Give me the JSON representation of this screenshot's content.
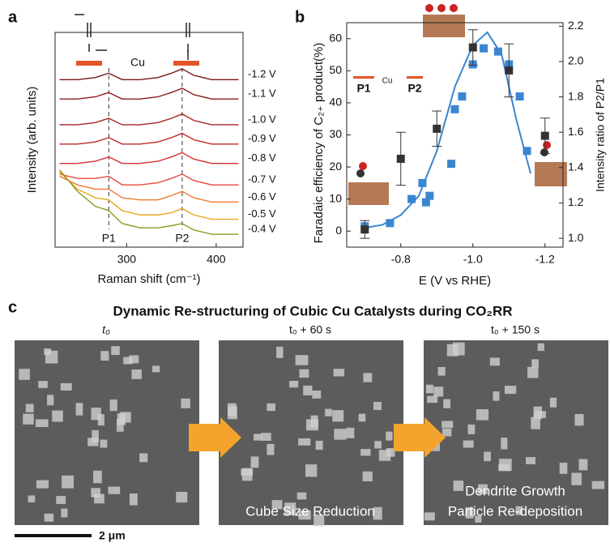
{
  "chart_data": [
    {
      "type": "line",
      "panel": "a",
      "annotation": "Cu",
      "ylabel": "Intensity (arb. units)",
      "xlabel": "Raman shift (cm⁻¹)",
      "x": [
        225,
        245,
        265,
        280,
        295,
        315,
        335,
        350,
        362,
        375,
        395,
        410,
        425
      ],
      "xlim": [
        220,
        430
      ],
      "xticks": [
        300,
        400
      ],
      "ylim": [
        0,
        100
      ],
      "markers": [
        {
          "label": "P1",
          "x": 280
        },
        {
          "label": "P2",
          "x": 362
        }
      ],
      "series": [
        {
          "name": "-1.2 V",
          "color": "#7a1616",
          "values": [
            78,
            78,
            79,
            81,
            78,
            78,
            79,
            81,
            83,
            80,
            78,
            78,
            78
          ]
        },
        {
          "name": "-1.1 V",
          "color": "#8e1c1c",
          "values": [
            69,
            69,
            70,
            72,
            69,
            69,
            70,
            72,
            74,
            71,
            69,
            69,
            69
          ]
        },
        {
          "name": "-1.0 V",
          "color": "#a82222",
          "values": [
            57,
            57,
            58,
            60,
            57,
            57,
            58,
            60,
            62,
            59,
            57,
            57,
            57
          ]
        },
        {
          "name": "-0.9 V",
          "color": "#c02828",
          "values": [
            48,
            48,
            49,
            51,
            48,
            48,
            49,
            51,
            53,
            50,
            48,
            48,
            48
          ]
        },
        {
          "name": "-0.8 V",
          "color": "#d63030",
          "values": [
            39,
            39,
            40,
            42,
            39,
            39,
            40,
            42,
            44,
            41,
            39,
            39,
            39
          ]
        },
        {
          "name": "-0.7 V",
          "color": "#e8483a",
          "values": [
            34,
            32,
            32,
            33,
            29,
            29,
            30,
            32,
            34,
            31,
            29,
            29,
            29
          ]
        },
        {
          "name": "-0.6 V",
          "color": "#f07a30",
          "values": [
            33,
            29,
            27,
            27,
            23,
            22,
            22,
            24,
            26,
            23,
            21,
            21,
            21
          ]
        },
        {
          "name": "-0.5 V",
          "color": "#e8a820",
          "values": [
            35,
            27,
            23,
            22,
            17,
            15,
            15,
            16,
            18,
            15,
            13,
            13,
            13
          ]
        },
        {
          "name": "-0.4 V",
          "color": "#8a9a22",
          "values": [
            36,
            26,
            19,
            17,
            11,
            9,
            9,
            10,
            11,
            8,
            6,
            6,
            6
          ]
        }
      ]
    },
    {
      "type": "scatter",
      "panel": "b",
      "annotations": [
        "P1",
        "P2",
        "Cu"
      ],
      "ylabel": "Faradaic efficiency of C₂₊ product(%)",
      "y2label": "Intensity ratio of P2/P1",
      "xlabel": "E (V vs RHE)",
      "xlim": [
        -0.65,
        -1.25
      ],
      "xticks": [
        -0.8,
        {
          "value": -1,
          "label": "-1.0"
        },
        -1.2
      ],
      "ylim": [
        -5,
        65
      ],
      "yticks": [
        0,
        10,
        20,
        30,
        40,
        50,
        60
      ],
      "y2lim": [
        0.95,
        2.22
      ],
      "y2ticks": [
        {
          "value": 1,
          "label": "1.0"
        },
        1.2,
        1.4,
        1.6,
        1.8,
        {
          "value": 2,
          "label": "2.0"
        },
        2.2
      ],
      "series": [
        {
          "color": "#3a86d0",
          "x": [
            -0.7,
            -0.77,
            -0.83,
            -0.86,
            -0.87,
            -0.88,
            -0.94,
            -0.95,
            -0.97,
            -1.0,
            -1.03,
            -1.07,
            -1.1,
            -1.13,
            -1.15
          ],
          "values": [
            1.5,
            2.5,
            10,
            15,
            9,
            11,
            21,
            38,
            42,
            52,
            57,
            56,
            52,
            42,
            25
          ]
        },
        {
          "color": "#3a86d0",
          "line": true,
          "x": [
            -0.7,
            -0.75,
            -0.8,
            -0.85,
            -0.9,
            -0.95,
            -1.0,
            -1.04,
            -1.08,
            -1.12,
            -1.16
          ],
          "values": [
            1,
            2,
            5,
            11,
            25,
            45,
            58,
            62,
            55,
            35,
            18
          ]
        },
        {
          "color": "#333333",
          "axis": "y2",
          "x": [
            -0.7,
            -0.8,
            -0.9,
            -1.0,
            -1.1,
            -1.2
          ],
          "values": [
            1.05,
            1.45,
            1.62,
            2.08,
            1.95,
            1.58
          ],
          "errors": [
            0.05,
            0.15,
            0.1,
            0.1,
            0.15,
            0.1
          ]
        }
      ]
    }
  ],
  "panel_c": {
    "label": "c",
    "title": "Dynamic Re-structuring of Cubic Cu Catalysts during CO₂RR",
    "times": [
      "t₀",
      "t₀ + 60 s",
      "t₀ + 150 s"
    ],
    "captions": [
      "Cube Size Reduction",
      "Dendrite Growth",
      "Particle Re-deposition"
    ],
    "scale_bar": "2 μm"
  }
}
